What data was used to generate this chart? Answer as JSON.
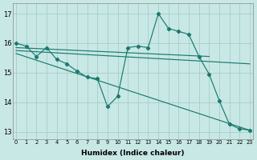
{
  "xlabel": "Humidex (Indice chaleur)",
  "background_color": "#c8e8e5",
  "grid_color": "#a8ccca",
  "line_color": "#1a7a70",
  "ylim": [
    12.75,
    17.35
  ],
  "xlim": [
    -0.3,
    23.3
  ],
  "yticks": [
    13,
    14,
    15,
    16,
    17
  ],
  "xticks": [
    0,
    1,
    2,
    3,
    4,
    5,
    6,
    7,
    8,
    9,
    10,
    11,
    12,
    13,
    14,
    15,
    16,
    17,
    18,
    19,
    20,
    21,
    22,
    23
  ],
  "line1_x": [
    0,
    1,
    2,
    3,
    4,
    5,
    6,
    7,
    8,
    9,
    10,
    11,
    12,
    13,
    14,
    15,
    16,
    17,
    18,
    19,
    20,
    21,
    22,
    23
  ],
  "line1_y": [
    16.0,
    15.9,
    15.55,
    15.85,
    15.45,
    15.3,
    15.05,
    14.85,
    14.8,
    13.85,
    14.2,
    15.85,
    15.9,
    15.85,
    17.0,
    16.5,
    16.4,
    16.3,
    15.55,
    14.95,
    14.05,
    13.25,
    13.1,
    13.05
  ],
  "line2_x": [
    0,
    19
  ],
  "line2_y": [
    15.85,
    15.55
  ],
  "line3_x": [
    0,
    23
  ],
  "line3_y": [
    15.75,
    15.3
  ],
  "line4_x": [
    0,
    23
  ],
  "line4_y": [
    15.65,
    13.05
  ]
}
